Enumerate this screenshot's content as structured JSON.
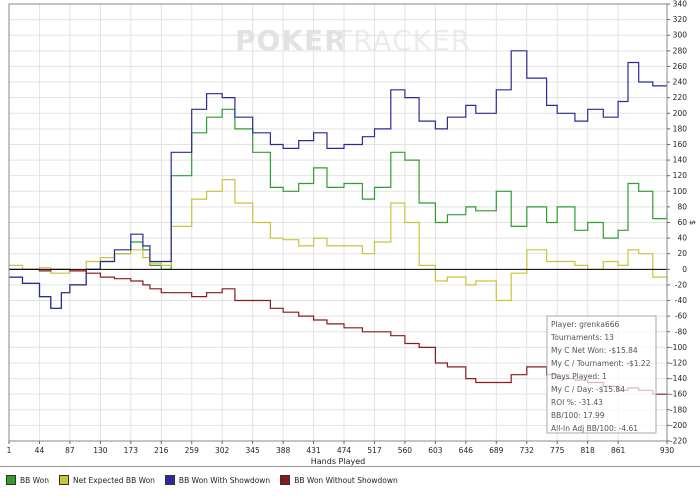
{
  "watermark": {
    "part1": "POKER",
    "part2": "TRACKER"
  },
  "chart_data": {
    "type": "line",
    "xlabel": "Hands Played",
    "ylabel": "$",
    "xlim": [
      1,
      930
    ],
    "ylim": [
      -220,
      340
    ],
    "x_ticks": [
      1,
      44,
      87,
      130,
      173,
      216,
      259,
      302,
      345,
      388,
      431,
      474,
      517,
      560,
      603,
      646,
      689,
      732,
      775,
      818,
      861,
      930
    ],
    "y_ticks": [
      340,
      320,
      300,
      280,
      260,
      240,
      220,
      200,
      180,
      160,
      140,
      120,
      100,
      80,
      60,
      40,
      20,
      0,
      -20,
      -40,
      -60,
      -80,
      -100,
      -120,
      -140,
      -160,
      -180,
      -200,
      -220
    ],
    "series": [
      {
        "name": "BB Won",
        "color": "#2f9e2f",
        "x": [
          1,
          20,
          44,
          60,
          75,
          87,
          110,
          130,
          150,
          173,
          190,
          200,
          216,
          230,
          259,
          280,
          302,
          320,
          345,
          370,
          388,
          410,
          431,
          450,
          474,
          500,
          517,
          540,
          560,
          580,
          603,
          620,
          646,
          660,
          689,
          710,
          732,
          760,
          775,
          800,
          818,
          840,
          861,
          875,
          890,
          910,
          930
        ],
        "y": [
          -10,
          -18,
          -35,
          -50,
          -30,
          -20,
          0,
          10,
          20,
          35,
          25,
          5,
          0,
          120,
          175,
          195,
          205,
          180,
          150,
          105,
          100,
          110,
          130,
          105,
          110,
          90,
          105,
          150,
          140,
          85,
          60,
          70,
          80,
          75,
          100,
          55,
          80,
          60,
          80,
          50,
          60,
          40,
          50,
          110,
          100,
          65,
          75
        ]
      },
      {
        "name": "Net Expected BB Won",
        "color": "#c9c43a",
        "x": [
          1,
          20,
          44,
          60,
          75,
          87,
          110,
          130,
          150,
          173,
          190,
          200,
          216,
          230,
          259,
          280,
          302,
          320,
          345,
          370,
          388,
          410,
          431,
          450,
          474,
          500,
          517,
          540,
          560,
          580,
          603,
          620,
          646,
          660,
          689,
          710,
          732,
          760,
          775,
          800,
          818,
          840,
          861,
          875,
          890,
          910,
          930
        ],
        "y": [
          5,
          0,
          2,
          -5,
          -5,
          -2,
          10,
          15,
          20,
          25,
          15,
          8,
          5,
          55,
          90,
          100,
          115,
          85,
          60,
          40,
          38,
          30,
          40,
          30,
          30,
          20,
          35,
          85,
          60,
          5,
          -15,
          -10,
          -20,
          -15,
          -40,
          -5,
          25,
          10,
          10,
          5,
          0,
          10,
          5,
          25,
          20,
          -10,
          -15
        ]
      },
      {
        "name": "BB Won With Showdown",
        "color": "#2a2a9a",
        "x": [
          1,
          20,
          44,
          60,
          75,
          87,
          110,
          130,
          150,
          173,
          190,
          200,
          216,
          230,
          259,
          280,
          302,
          320,
          345,
          370,
          388,
          410,
          431,
          450,
          474,
          500,
          517,
          540,
          560,
          580,
          603,
          620,
          646,
          660,
          689,
          710,
          732,
          760,
          775,
          800,
          818,
          840,
          861,
          875,
          890,
          910,
          930
        ],
        "y": [
          -10,
          -18,
          -35,
          -50,
          -30,
          -20,
          0,
          10,
          25,
          45,
          30,
          10,
          10,
          150,
          205,
          225,
          220,
          195,
          175,
          160,
          155,
          165,
          175,
          155,
          160,
          170,
          180,
          230,
          220,
          190,
          180,
          195,
          210,
          200,
          230,
          280,
          245,
          210,
          200,
          190,
          205,
          195,
          215,
          265,
          240,
          235,
          235
        ]
      },
      {
        "name": "BB Won Without Showdown",
        "color": "#8b1a1a",
        "x": [
          1,
          20,
          44,
          60,
          75,
          87,
          110,
          130,
          150,
          173,
          190,
          200,
          216,
          230,
          259,
          280,
          302,
          320,
          345,
          370,
          388,
          410,
          431,
          450,
          474,
          500,
          517,
          540,
          560,
          580,
          603,
          620,
          646,
          660,
          689,
          710,
          732,
          760,
          775,
          800,
          818,
          840,
          861,
          875,
          890,
          910,
          930
        ],
        "y": [
          0,
          0,
          -2,
          0,
          0,
          -2,
          -5,
          -10,
          -12,
          -15,
          -20,
          -25,
          -30,
          -30,
          -35,
          -30,
          -25,
          -40,
          -40,
          -50,
          -55,
          -60,
          -65,
          -70,
          -75,
          -80,
          -80,
          -85,
          -95,
          -100,
          -120,
          -125,
          -140,
          -145,
          -145,
          -135,
          -125,
          -135,
          -140,
          -142,
          -145,
          -150,
          -155,
          -152,
          -155,
          -160,
          -160
        ]
      }
    ]
  },
  "stats": {
    "player": "Player: grenka666",
    "tournaments": "Tournaments: 13",
    "net_won": "My C Net Won: -$15.84",
    "per_tournament": "My C / Tournament: -$1.22",
    "days_played": "Days Played: 1",
    "per_day": "My C / Day: -$15.84",
    "roi": "ROI %: -31.43",
    "bb100": "BB/100: 17.99",
    "allin_bb100": "All-In Adj BB/100: -4.61"
  },
  "legend": [
    {
      "label": "BB Won",
      "color": "#2f9e2f"
    },
    {
      "label": "Net Expected BB Won",
      "color": "#c9c43a"
    },
    {
      "label": "BB Won With Showdown",
      "color": "#2a2a9a"
    },
    {
      "label": "BB Won Without Showdown",
      "color": "#8b1a1a"
    }
  ]
}
